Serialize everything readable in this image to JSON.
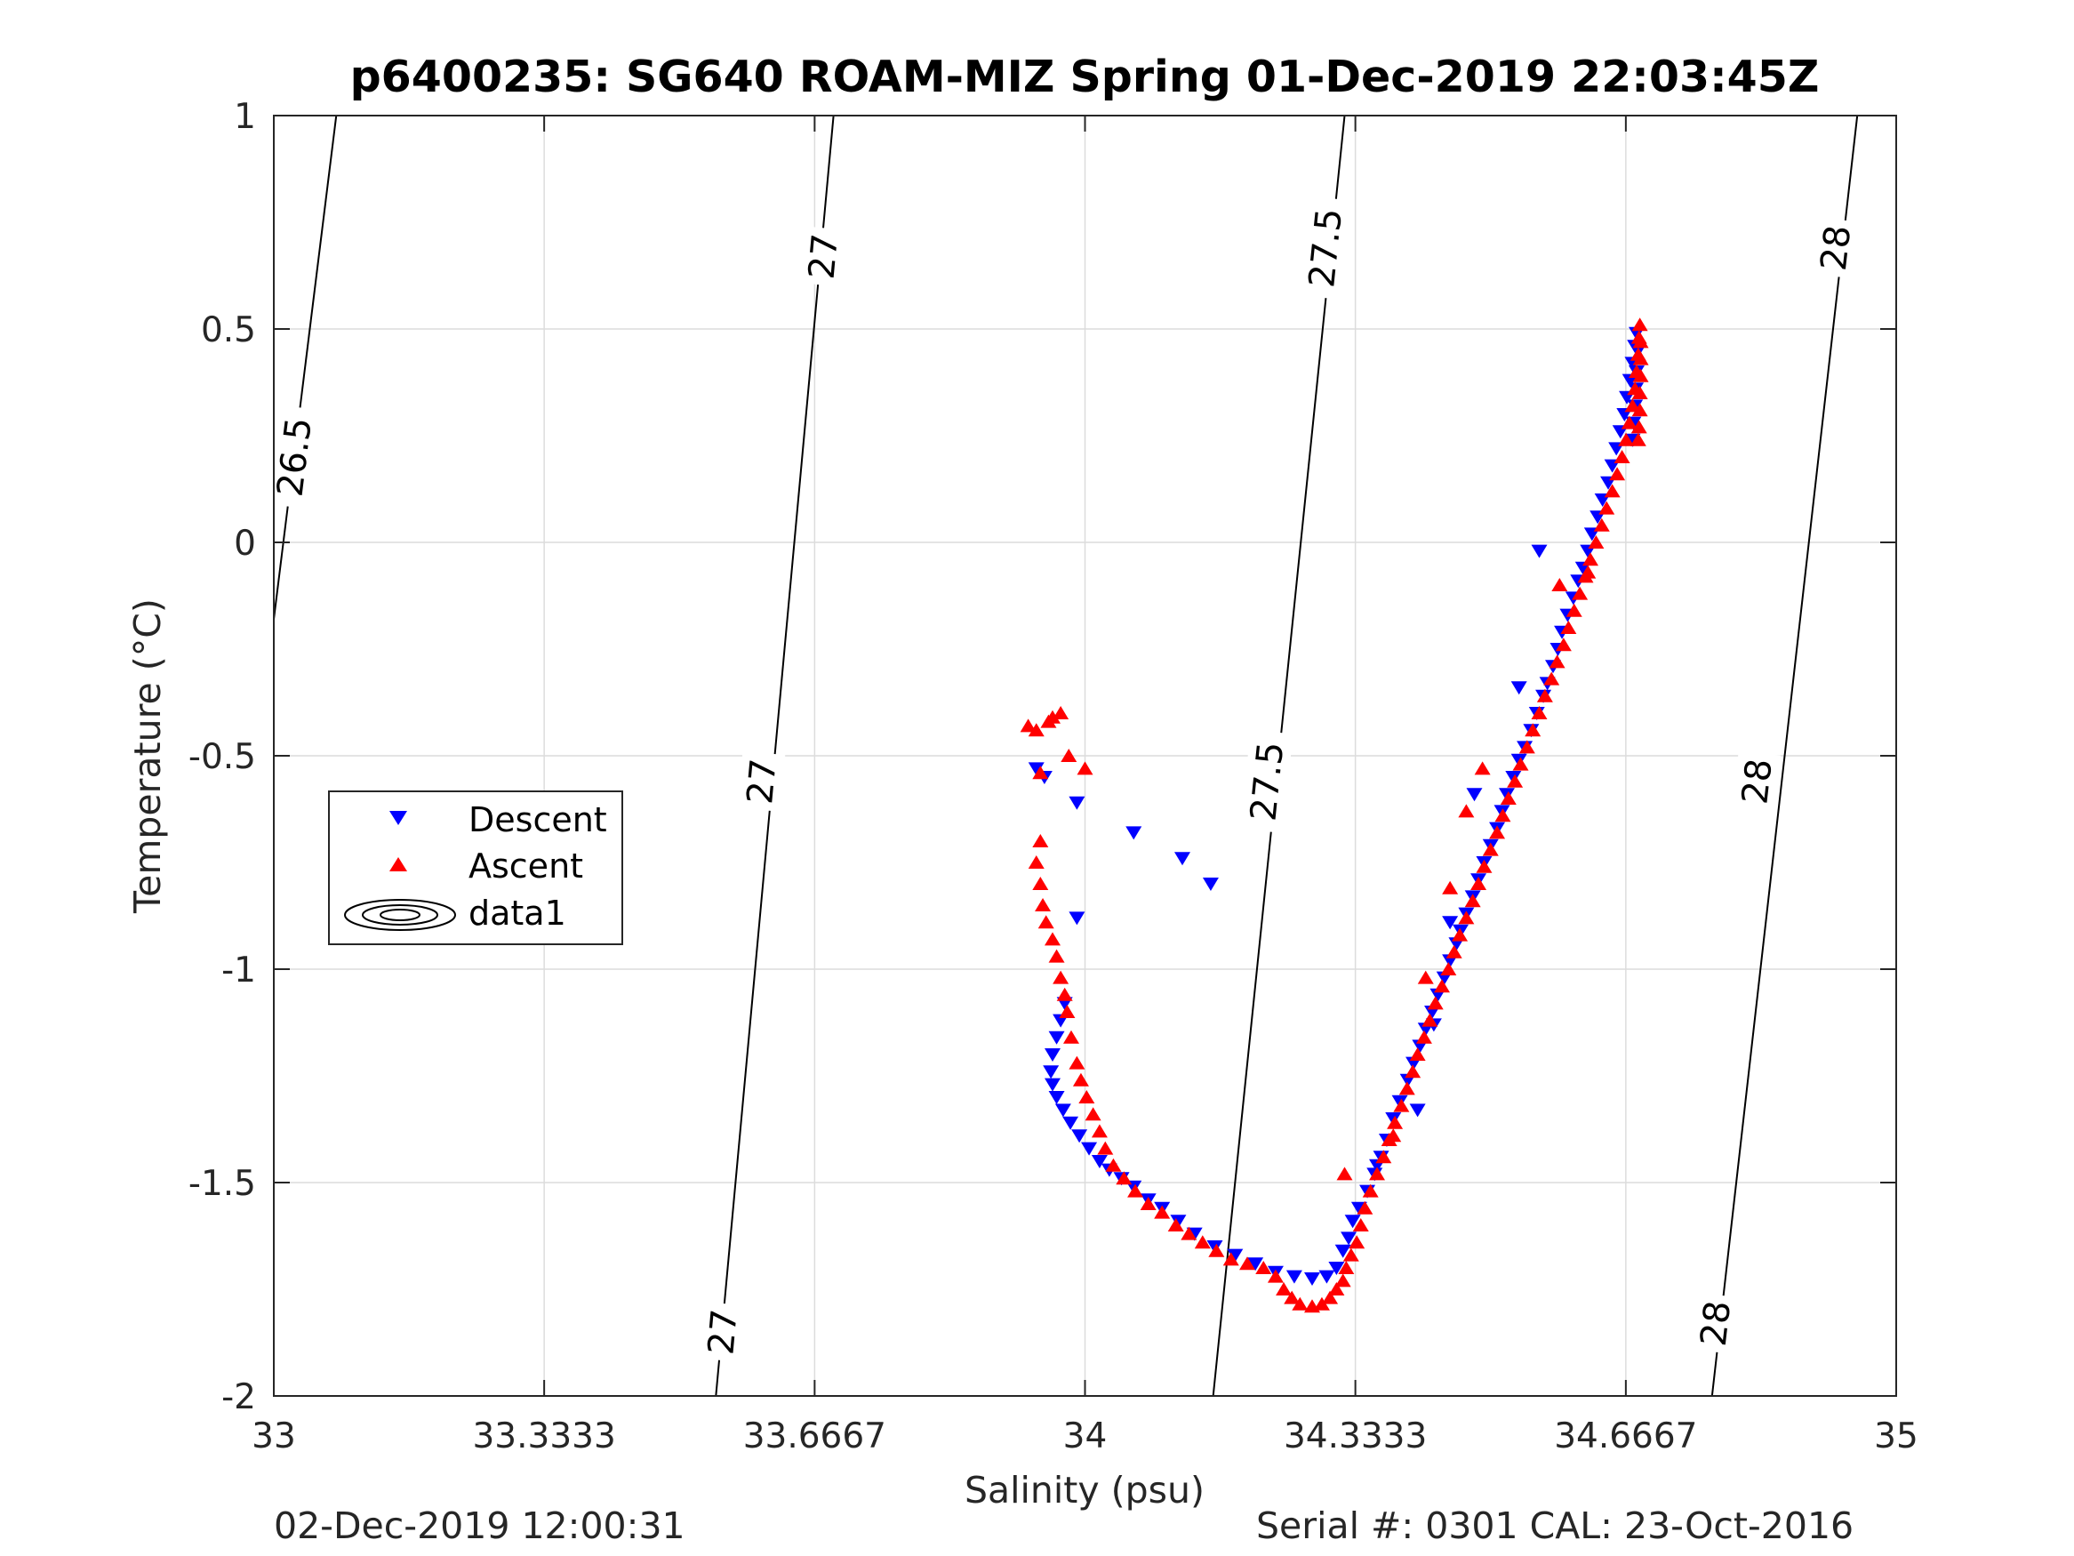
{
  "chart_data": {
    "type": "scatter",
    "title": "p6400235: SG640 ROAM-MIZ Spring 01-Dec-2019 22:03:45Z",
    "xlabel": "Salinity (psu)",
    "ylabel": "Temperature (°C)",
    "xlim": [
      33,
      35
    ],
    "ylim": [
      -2,
      1
    ],
    "x_ticks": [
      33,
      33.3333,
      33.6667,
      34,
      34.3333,
      34.6667,
      35
    ],
    "x_tick_labels": [
      "33",
      "33.3333",
      "33.6667",
      "34",
      "34.3333",
      "34.6667",
      "35"
    ],
    "y_ticks": [
      -2,
      -1.5,
      -1,
      -0.5,
      0,
      0.5,
      1
    ],
    "y_tick_labels": [
      "-2",
      "-1.5",
      "-1",
      "-0.5",
      "0",
      "0.5",
      "1"
    ],
    "grid": true,
    "legend": {
      "position": "left-center",
      "entries": [
        "Descent",
        "Ascent",
        "data1"
      ]
    },
    "isopycnals": [
      {
        "label": "26.5",
        "points": [
          [
            33.0,
            -0.18
          ],
          [
            33.077,
            1.0
          ]
        ],
        "label_at": [
          [
            33.025,
            0.2
          ]
        ]
      },
      {
        "label": "27",
        "points": [
          [
            33.545,
            -2.0
          ],
          [
            33.69,
            1.0
          ]
        ],
        "label_at": [
          [
            33.553,
            -1.85
          ],
          [
            33.601,
            -0.56
          ],
          [
            33.677,
            0.67
          ]
        ]
      },
      {
        "label": "27.5",
        "points": [
          [
            34.158,
            -2.0
          ],
          [
            34.32,
            1.0
          ]
        ],
        "label_at": [
          [
            34.224,
            -0.56
          ],
          [
            34.296,
            0.69
          ]
        ]
      },
      {
        "label": "28",
        "points": [
          [
            34.773,
            -2.0
          ],
          [
            34.952,
            1.0
          ]
        ],
        "label_at": [
          [
            34.777,
            -1.83
          ],
          [
            34.828,
            -0.56
          ],
          [
            34.925,
            0.69
          ]
        ]
      }
    ],
    "series": [
      {
        "name": "Descent",
        "color": "#0000ff",
        "marker": "triangle-down",
        "points": [
          [
            33.94,
            -0.53
          ],
          [
            33.95,
            -0.55
          ],
          [
            33.99,
            -0.61
          ],
          [
            34.06,
            -0.68
          ],
          [
            34.12,
            -0.74
          ],
          [
            34.155,
            -0.8
          ],
          [
            33.99,
            -0.88
          ],
          [
            33.975,
            -1.08
          ],
          [
            33.97,
            -1.12
          ],
          [
            33.965,
            -1.16
          ],
          [
            33.96,
            -1.2
          ],
          [
            33.958,
            -1.24
          ],
          [
            33.96,
            -1.27
          ],
          [
            33.965,
            -1.3
          ],
          [
            33.973,
            -1.33
          ],
          [
            33.982,
            -1.36
          ],
          [
            33.993,
            -1.39
          ],
          [
            34.005,
            -1.42
          ],
          [
            34.018,
            -1.45
          ],
          [
            34.03,
            -1.47
          ],
          [
            34.045,
            -1.49
          ],
          [
            34.06,
            -1.51
          ],
          [
            34.078,
            -1.54
          ],
          [
            34.095,
            -1.56
          ],
          [
            34.115,
            -1.59
          ],
          [
            34.135,
            -1.62
          ],
          [
            34.16,
            -1.65
          ],
          [
            34.185,
            -1.67
          ],
          [
            34.21,
            -1.69
          ],
          [
            34.235,
            -1.71
          ],
          [
            34.258,
            -1.72
          ],
          [
            34.28,
            -1.725
          ],
          [
            34.298,
            -1.72
          ],
          [
            34.31,
            -1.7
          ],
          [
            34.318,
            -1.66
          ],
          [
            34.325,
            -1.63
          ],
          [
            34.33,
            -1.59
          ],
          [
            34.338,
            -1.56
          ],
          [
            34.348,
            -1.52
          ],
          [
            34.357,
            -1.48
          ],
          [
            34.365,
            -1.44
          ],
          [
            34.372,
            -1.4
          ],
          [
            34.38,
            -1.35
          ],
          [
            34.388,
            -1.31
          ],
          [
            34.398,
            -1.26
          ],
          [
            34.405,
            -1.22
          ],
          [
            34.413,
            -1.18
          ],
          [
            34.42,
            -1.14
          ],
          [
            34.428,
            -1.1
          ],
          [
            34.435,
            -1.06
          ],
          [
            34.443,
            -1.02
          ],
          [
            34.45,
            -0.98
          ],
          [
            34.458,
            -0.94
          ],
          [
            34.463,
            -0.91
          ],
          [
            34.47,
            -0.87
          ],
          [
            34.478,
            -0.83
          ],
          [
            34.485,
            -0.79
          ],
          [
            34.492,
            -0.75
          ],
          [
            34.5,
            -0.71
          ],
          [
            34.508,
            -0.67
          ],
          [
            34.514,
            -0.63
          ],
          [
            34.52,
            -0.59
          ],
          [
            34.528,
            -0.55
          ],
          [
            34.535,
            -0.51
          ],
          [
            34.542,
            -0.48
          ],
          [
            34.55,
            -0.44
          ],
          [
            34.557,
            -0.4
          ],
          [
            34.565,
            -0.36
          ],
          [
            34.57,
            -0.33
          ],
          [
            34.577,
            -0.29
          ],
          [
            34.583,
            -0.25
          ],
          [
            34.588,
            -0.21
          ],
          [
            34.595,
            -0.17
          ],
          [
            34.602,
            -0.13
          ],
          [
            34.608,
            -0.09
          ],
          [
            34.614,
            -0.06
          ],
          [
            34.62,
            -0.02
          ],
          [
            34.625,
            0.02
          ],
          [
            34.632,
            0.06
          ],
          [
            34.638,
            0.1
          ],
          [
            34.645,
            0.14
          ],
          [
            34.65,
            0.18
          ],
          [
            34.655,
            0.22
          ],
          [
            34.66,
            0.26
          ],
          [
            34.665,
            0.3
          ],
          [
            34.668,
            0.34
          ],
          [
            34.672,
            0.38
          ],
          [
            34.675,
            0.42
          ],
          [
            34.678,
            0.46
          ],
          [
            34.68,
            0.49
          ],
          [
            34.682,
            0.45
          ],
          [
            34.68,
            0.4
          ],
          [
            34.679,
            0.36
          ],
          [
            34.678,
            0.32
          ],
          [
            34.676,
            0.28
          ],
          [
            34.675,
            0.24
          ],
          [
            34.56,
            -0.02
          ],
          [
            34.535,
            -0.34
          ],
          [
            34.48,
            -0.59
          ],
          [
            34.45,
            -0.89
          ],
          [
            34.43,
            -1.13
          ],
          [
            34.41,
            -1.33
          ],
          [
            34.36,
            -1.46
          ]
        ]
      },
      {
        "name": "Ascent",
        "color": "#ff0000",
        "marker": "triangle-up",
        "points": [
          [
            33.93,
            -0.43
          ],
          [
            33.94,
            -0.44
          ],
          [
            33.955,
            -0.42
          ],
          [
            33.96,
            -0.41
          ],
          [
            33.97,
            -0.4
          ],
          [
            33.945,
            -0.54
          ],
          [
            33.98,
            -0.5
          ],
          [
            34.0,
            -0.53
          ],
          [
            33.945,
            -0.7
          ],
          [
            33.94,
            -0.75
          ],
          [
            33.945,
            -0.8
          ],
          [
            33.948,
            -0.85
          ],
          [
            33.952,
            -0.89
          ],
          [
            33.96,
            -0.93
          ],
          [
            33.965,
            -0.97
          ],
          [
            33.97,
            -1.02
          ],
          [
            33.975,
            -1.06
          ],
          [
            33.978,
            -1.1
          ],
          [
            33.983,
            -1.16
          ],
          [
            33.99,
            -1.22
          ],
          [
            33.995,
            -1.26
          ],
          [
            34.002,
            -1.3
          ],
          [
            34.01,
            -1.34
          ],
          [
            34.018,
            -1.38
          ],
          [
            34.025,
            -1.42
          ],
          [
            34.035,
            -1.46
          ],
          [
            34.048,
            -1.49
          ],
          [
            34.062,
            -1.52
          ],
          [
            34.078,
            -1.55
          ],
          [
            34.095,
            -1.57
          ],
          [
            34.112,
            -1.6
          ],
          [
            34.128,
            -1.62
          ],
          [
            34.145,
            -1.64
          ],
          [
            34.162,
            -1.66
          ],
          [
            34.18,
            -1.68
          ],
          [
            34.2,
            -1.69
          ],
          [
            34.22,
            -1.7
          ],
          [
            34.235,
            -1.72
          ],
          [
            34.245,
            -1.75
          ],
          [
            34.255,
            -1.77
          ],
          [
            34.265,
            -1.785
          ],
          [
            34.28,
            -1.79
          ],
          [
            34.292,
            -1.785
          ],
          [
            34.302,
            -1.77
          ],
          [
            34.31,
            -1.75
          ],
          [
            34.318,
            -1.73
          ],
          [
            34.322,
            -1.7
          ],
          [
            34.328,
            -1.67
          ],
          [
            34.335,
            -1.64
          ],
          [
            34.34,
            -1.6
          ],
          [
            34.345,
            -1.56
          ],
          [
            34.352,
            -1.52
          ],
          [
            34.36,
            -1.48
          ],
          [
            34.368,
            -1.44
          ],
          [
            34.375,
            -1.4
          ],
          [
            34.382,
            -1.36
          ],
          [
            34.39,
            -1.32
          ],
          [
            34.397,
            -1.28
          ],
          [
            34.404,
            -1.24
          ],
          [
            34.41,
            -1.2
          ],
          [
            34.418,
            -1.16
          ],
          [
            34.425,
            -1.12
          ],
          [
            34.432,
            -1.08
          ],
          [
            34.44,
            -1.04
          ],
          [
            34.448,
            -1.0
          ],
          [
            34.455,
            -0.96
          ],
          [
            34.462,
            -0.92
          ],
          [
            34.47,
            -0.88
          ],
          [
            34.478,
            -0.84
          ],
          [
            34.485,
            -0.8
          ],
          [
            34.492,
            -0.76
          ],
          [
            34.5,
            -0.72
          ],
          [
            34.508,
            -0.68
          ],
          [
            34.515,
            -0.64
          ],
          [
            34.522,
            -0.6
          ],
          [
            34.53,
            -0.56
          ],
          [
            34.537,
            -0.52
          ],
          [
            34.545,
            -0.48
          ],
          [
            34.552,
            -0.44
          ],
          [
            34.56,
            -0.4
          ],
          [
            34.567,
            -0.36
          ],
          [
            34.575,
            -0.32
          ],
          [
            34.582,
            -0.28
          ],
          [
            34.59,
            -0.24
          ],
          [
            34.596,
            -0.2
          ],
          [
            34.603,
            -0.16
          ],
          [
            34.61,
            -0.12
          ],
          [
            34.617,
            -0.08
          ],
          [
            34.623,
            -0.04
          ],
          [
            34.63,
            0.0
          ],
          [
            34.637,
            0.04
          ],
          [
            34.643,
            0.08
          ],
          [
            34.65,
            0.12
          ],
          [
            34.656,
            0.16
          ],
          [
            34.662,
            0.2
          ],
          [
            34.667,
            0.24
          ],
          [
            34.671,
            0.28
          ],
          [
            34.675,
            0.32
          ],
          [
            34.678,
            0.36
          ],
          [
            34.68,
            0.4
          ],
          [
            34.682,
            0.44
          ],
          [
            34.683,
            0.48
          ],
          [
            34.684,
            0.51
          ],
          [
            34.685,
            0.47
          ],
          [
            34.685,
            0.43
          ],
          [
            34.685,
            0.39
          ],
          [
            34.684,
            0.35
          ],
          [
            34.684,
            0.31
          ],
          [
            34.683,
            0.27
          ],
          [
            34.682,
            0.24
          ],
          [
            34.49,
            -0.53
          ],
          [
            34.47,
            -0.63
          ],
          [
            34.45,
            -0.81
          ],
          [
            34.42,
            -1.02
          ],
          [
            34.38,
            -1.39
          ],
          [
            34.32,
            -1.48
          ],
          [
            34.62,
            -0.07
          ],
          [
            34.585,
            -0.1
          ]
        ]
      }
    ]
  },
  "footer": {
    "left": "02-Dec-2019 12:00:31",
    "right": "Serial #: 0301  CAL: 23-Oct-2016"
  }
}
